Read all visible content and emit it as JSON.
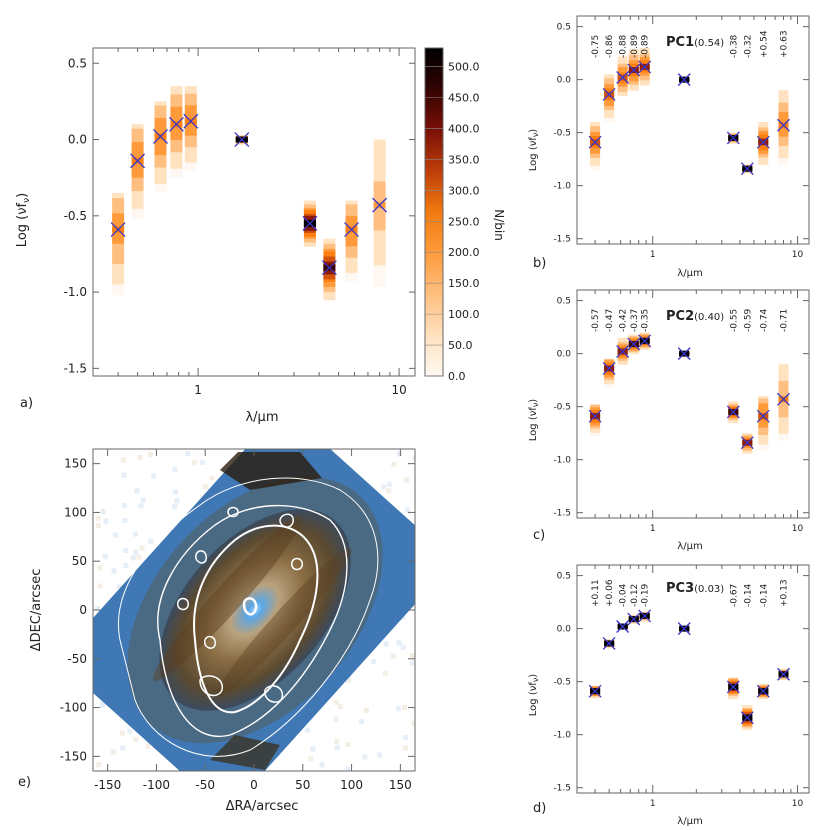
{
  "panels": {
    "a": {
      "label": "a)"
    },
    "b": {
      "label": "b)"
    },
    "c": {
      "label": "c)"
    },
    "d": {
      "label": "d)"
    },
    "e": {
      "label": "e)"
    }
  },
  "colors": {
    "marker": "#3a36c8",
    "frame": "#666666",
    "density_ramp": [
      "#fff8f2",
      "#ffe2c0",
      "#ffbf80",
      "#ff9a3a",
      "#ff7f0e",
      "#d2530c",
      "#8e1a08",
      "#3a0404",
      "#000000"
    ],
    "contour": "#ffffff"
  },
  "chart_data": [
    {
      "id": "a",
      "type": "scatter",
      "xlabel": "λ/μm",
      "ylabel": "Log (νf_ν)",
      "xscale": "log",
      "xlim": [
        0.3,
        12
      ],
      "ylim": [
        -1.55,
        0.6
      ],
      "xticks": [
        1,
        10
      ],
      "xtick_labels": [
        "1",
        "10"
      ],
      "yticks": [
        0.5,
        0.0,
        -0.5,
        -1.0,
        -1.5
      ],
      "ytick_labels": [
        "0.5",
        "0.0",
        "-0.5",
        "-1.0",
        "-1.5"
      ],
      "points": [
        {
          "x": 0.4,
          "y": -0.59,
          "spread": [
            -1.15,
            -0.35
          ],
          "peak": 0.35
        },
        {
          "x": 0.5,
          "y": -0.14,
          "spread": [
            -0.6,
            0.1
          ],
          "peak": 0.4
        },
        {
          "x": 0.65,
          "y": 0.02,
          "spread": [
            -0.4,
            0.25
          ],
          "peak": 0.4
        },
        {
          "x": 0.78,
          "y": 0.1,
          "spread": [
            -0.3,
            0.35
          ],
          "peak": 0.4
        },
        {
          "x": 0.92,
          "y": 0.12,
          "spread": [
            -0.25,
            0.35
          ],
          "peak": 0.4
        },
        {
          "x": 1.65,
          "y": 0.0,
          "spread": [
            -0.03,
            0.03
          ],
          "peak": 1.0
        },
        {
          "x": 3.6,
          "y": -0.55,
          "spread": [
            -0.7,
            -0.4
          ],
          "peak": 0.85
        },
        {
          "x": 4.5,
          "y": -0.84,
          "spread": [
            -1.05,
            -0.65
          ],
          "peak": 0.75
        },
        {
          "x": 5.8,
          "y": -0.59,
          "spread": [
            -1.0,
            -0.4
          ],
          "peak": 0.4
        },
        {
          "x": 8.0,
          "y": -0.43,
          "spread": [
            -1.1,
            0.0
          ],
          "peak": 0.22
        }
      ],
      "colorbar": {
        "label": "N/bin",
        "range": [
          0,
          530
        ],
        "ticks": [
          0.0,
          50.0,
          100.0,
          150.0,
          200.0,
          250.0,
          300.0,
          350.0,
          400.0,
          450.0,
          500.0
        ],
        "tick_labels": [
          "0.0",
          "50.0",
          "100.0",
          "150.0",
          "200.0",
          "250.0",
          "300.0",
          "350.0",
          "400.0",
          "450.0",
          "500.0"
        ]
      }
    },
    {
      "id": "b",
      "type": "scatter",
      "title": "PC1",
      "variance": "(0.54)",
      "xlabel": "λ/μm",
      "ylabel": "Log (νf_ν)",
      "xscale": "log",
      "xlim": [
        0.3,
        12
      ],
      "ylim": [
        -1.55,
        0.6
      ],
      "xticks": [
        1,
        10
      ],
      "xtick_labels": [
        "1",
        "10"
      ],
      "yticks": [
        0.5,
        0.0,
        -0.5,
        -1.0,
        -1.5
      ],
      "ytick_labels": [
        "0.5",
        "0.0",
        "-0.5",
        "-1.0",
        "-1.5"
      ],
      "coefficients": [
        "-0.75",
        "-0.86",
        "-0.88",
        "-0.89",
        "-0.89",
        "-0.38",
        "-0.32",
        "+0.54",
        "+0.63"
      ],
      "points": [
        {
          "x": 0.4,
          "y": -0.59,
          "spread": [
            -0.85,
            -0.4
          ],
          "peak": 0.5
        },
        {
          "x": 0.5,
          "y": -0.14,
          "spread": [
            -0.4,
            0.05
          ],
          "peak": 0.5
        },
        {
          "x": 0.62,
          "y": 0.02,
          "spread": [
            -0.15,
            0.25
          ],
          "peak": 0.5
        },
        {
          "x": 0.74,
          "y": 0.09,
          "spread": [
            -0.1,
            0.3
          ],
          "peak": 0.55
        },
        {
          "x": 0.88,
          "y": 0.12,
          "spread": [
            -0.05,
            0.3
          ],
          "peak": 0.55
        },
        {
          "x": 1.65,
          "y": 0.0,
          "spread": [
            -0.02,
            0.02
          ],
          "peak": 1.0
        },
        {
          "x": 3.6,
          "y": -0.55,
          "spread": [
            -0.6,
            -0.5
          ],
          "peak": 0.9
        },
        {
          "x": 4.5,
          "y": -0.84,
          "spread": [
            -0.88,
            -0.8
          ],
          "peak": 0.95
        },
        {
          "x": 5.8,
          "y": -0.59,
          "spread": [
            -0.8,
            -0.4
          ],
          "peak": 0.6
        },
        {
          "x": 8.0,
          "y": -0.43,
          "spread": [
            -0.8,
            -0.1
          ],
          "peak": 0.4
        }
      ]
    },
    {
      "id": "c",
      "type": "scatter",
      "title": "PC2",
      "variance": "(0.40)",
      "xlabel": "λ/μm",
      "ylabel": "Log (νf_ν)",
      "xscale": "log",
      "xlim": [
        0.3,
        12
      ],
      "ylim": [
        -1.55,
        0.6
      ],
      "xticks": [
        1,
        10
      ],
      "xtick_labels": [
        "1",
        "10"
      ],
      "yticks": [
        0.5,
        0.0,
        -0.5,
        -1.0,
        -1.5
      ],
      "ytick_labels": [
        "0.5",
        "0.0",
        "-0.5",
        "-1.0",
        "-1.5"
      ],
      "coefficients": [
        "-0.57",
        "-0.47",
        "-0.42",
        "-0.37",
        "-0.35",
        "-0.55",
        "-0.59",
        "-0.74",
        "-0.71"
      ],
      "points": [
        {
          "x": 0.4,
          "y": -0.59,
          "spread": [
            -0.8,
            -0.48
          ],
          "peak": 0.6
        },
        {
          "x": 0.5,
          "y": -0.14,
          "spread": [
            -0.35,
            -0.05
          ],
          "peak": 0.6
        },
        {
          "x": 0.62,
          "y": 0.02,
          "spread": [
            -0.1,
            0.15
          ],
          "peak": 0.6
        },
        {
          "x": 0.74,
          "y": 0.09,
          "spread": [
            0.0,
            0.18
          ],
          "peak": 0.75
        },
        {
          "x": 0.88,
          "y": 0.12,
          "spread": [
            0.04,
            0.2
          ],
          "peak": 0.8
        },
        {
          "x": 1.65,
          "y": 0.0,
          "spread": [
            -0.02,
            0.02
          ],
          "peak": 1.0
        },
        {
          "x": 3.6,
          "y": -0.55,
          "spread": [
            -0.65,
            -0.45
          ],
          "peak": 0.7
        },
        {
          "x": 4.5,
          "y": -0.84,
          "spread": [
            -0.95,
            -0.75
          ],
          "peak": 0.6
        },
        {
          "x": 5.8,
          "y": -0.59,
          "spread": [
            -0.95,
            -0.4
          ],
          "peak": 0.45
        },
        {
          "x": 8.0,
          "y": -0.43,
          "spread": [
            -0.85,
            -0.1
          ],
          "peak": 0.3
        }
      ]
    },
    {
      "id": "d",
      "type": "scatter",
      "title": "PC3",
      "variance": "(0.03)",
      "xlabel": "λ/μm",
      "ylabel": "Log (νf_ν)",
      "xscale": "log",
      "xlim": [
        0.3,
        12
      ],
      "ylim": [
        -1.55,
        0.6
      ],
      "xticks": [
        1,
        10
      ],
      "xtick_labels": [
        "1",
        "10"
      ],
      "yticks": [
        0.5,
        0.0,
        -0.5,
        -1.0,
        -1.5
      ],
      "ytick_labels": [
        "0.5",
        "0.0",
        "-0.5",
        "-1.0",
        "-1.5"
      ],
      "coefficients": [
        "+0.11",
        "+0.06",
        "-0.04",
        "-0.12",
        "-0.19",
        "-0.67",
        "-0.14",
        "-0.14",
        "+0.13"
      ],
      "points": [
        {
          "x": 0.4,
          "y": -0.59,
          "spread": [
            -0.66,
            -0.54
          ],
          "peak": 0.95
        },
        {
          "x": 0.5,
          "y": -0.14,
          "spread": [
            -0.18,
            -0.1
          ],
          "peak": 0.95
        },
        {
          "x": 0.62,
          "y": 0.02,
          "spread": [
            0.0,
            0.04
          ],
          "peak": 0.8
        },
        {
          "x": 0.74,
          "y": 0.09,
          "spread": [
            0.05,
            0.13
          ],
          "peak": 0.85
        },
        {
          "x": 0.88,
          "y": 0.12,
          "spread": [
            0.07,
            0.16
          ],
          "peak": 0.85
        },
        {
          "x": 1.65,
          "y": 0.0,
          "spread": [
            -0.02,
            0.02
          ],
          "peak": 1.0
        },
        {
          "x": 3.6,
          "y": -0.55,
          "spread": [
            -0.66,
            -0.46
          ],
          "peak": 0.9
        },
        {
          "x": 4.5,
          "y": -0.84,
          "spread": [
            -0.95,
            -0.72
          ],
          "peak": 0.85
        },
        {
          "x": 5.8,
          "y": -0.59,
          "spread": [
            -0.66,
            -0.52
          ],
          "peak": 0.95
        },
        {
          "x": 8.0,
          "y": -0.43,
          "spread": [
            -0.48,
            -0.38
          ],
          "peak": 0.95
        }
      ]
    },
    {
      "id": "e",
      "type": "heatmap",
      "xlabel": "ΔRA/arcsec",
      "ylabel": "ΔDEC/arcsec",
      "xlim": [
        -165,
        165
      ],
      "ylim": [
        -165,
        165
      ],
      "xticks": [
        -150,
        -100,
        -50,
        0,
        50,
        100,
        150
      ],
      "xtick_labels": [
        "-150",
        "-100",
        "-50",
        "0",
        "50",
        "100",
        "150"
      ],
      "yticks": [
        150,
        100,
        50,
        0,
        -50,
        -100,
        -150
      ],
      "ytick_labels": [
        "150",
        "100",
        "50",
        "0",
        "-50",
        "-100",
        "-150"
      ]
    }
  ]
}
